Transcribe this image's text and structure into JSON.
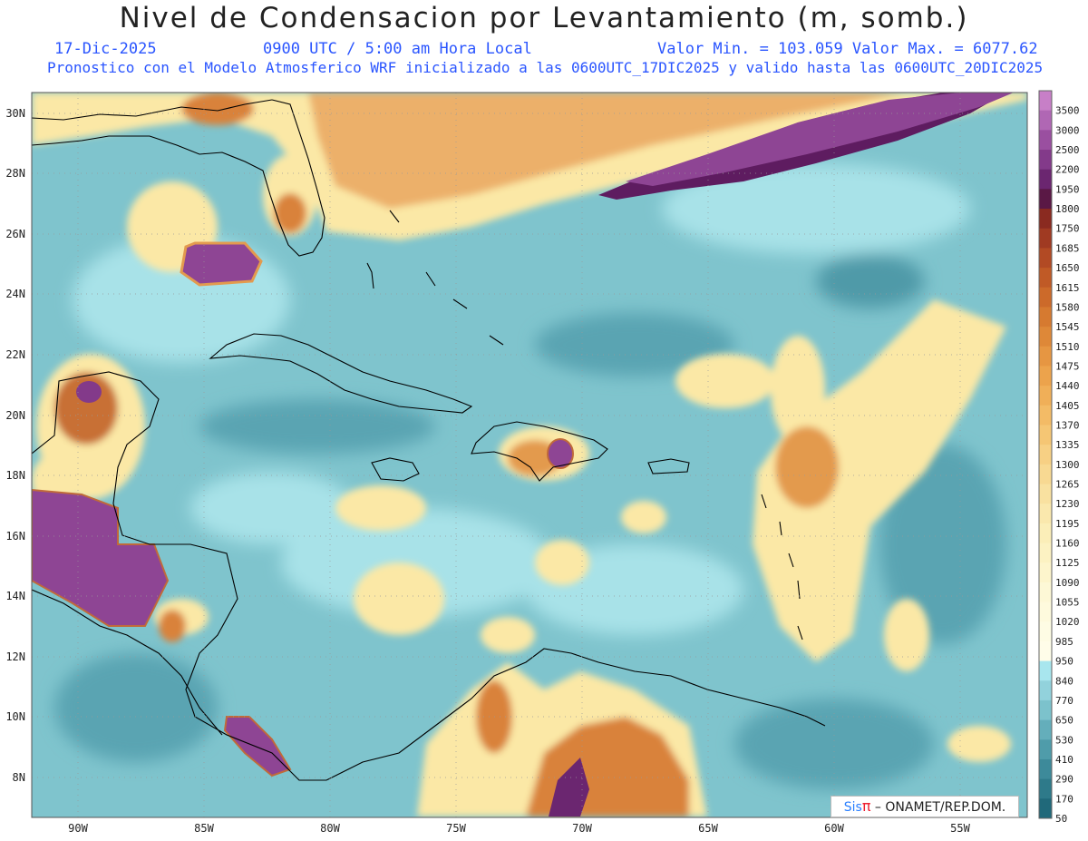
{
  "header": {
    "title": "Nivel de Condensacion por Levantamiento (m, somb.)",
    "date": "17-Dic-2025",
    "time": "0900 UTC / 5:00 am Hora Local",
    "values": "Valor Min. = 103.059  Valor Max. = 6077.62",
    "description": "Pronostico con el Modelo Atmosferico WRF inicializado a las 0600UTC_17DIC2025 y valido hasta las  0600UTC_20DIC2025"
  },
  "axes": {
    "lat_labels": [
      "30N",
      "28N",
      "26N",
      "24N",
      "22N",
      "20N",
      "18N",
      "16N",
      "14N",
      "12N",
      "10N",
      "8N"
    ],
    "lon_labels": [
      "90W",
      "85W",
      "80W",
      "75W",
      "70W",
      "65W",
      "60W",
      "55W"
    ]
  },
  "colorbar": {
    "labels": [
      "3500",
      "3000",
      "2500",
      "2200",
      "1950",
      "1800",
      "1750",
      "1685",
      "1650",
      "1615",
      "1580",
      "1545",
      "1510",
      "1475",
      "1440",
      "1405",
      "1370",
      "1335",
      "1300",
      "1265",
      "1230",
      "1195",
      "1160",
      "1125",
      "1090",
      "1055",
      "1020",
      "985",
      "950",
      "840",
      "770",
      "650",
      "530",
      "410",
      "290",
      "170",
      "50"
    ],
    "colors": [
      "#c77fc7",
      "#b067b4",
      "#9a4fa0",
      "#833a8a",
      "#6b2670",
      "#5a1845",
      "#8a2a20",
      "#a03a22",
      "#b24a24",
      "#c05a26",
      "#cc6a2a",
      "#d67a30",
      "#de8838",
      "#e69642",
      "#eca34c",
      "#f0af58",
      "#f3bb66",
      "#f5c674",
      "#f7d084",
      "#f8d992",
      "#f9e1a0",
      "#fae8ad",
      "#fbeeb8",
      "#fcf2c2",
      "#fdf5cc",
      "#fdf8d6",
      "#fefadd",
      "#fefce4",
      "#fffde9",
      "#a8e6ee",
      "#92d2dc",
      "#7cc2cc",
      "#64aebb",
      "#4f9caa",
      "#3d8a9a",
      "#2e7a8a",
      "#20697a"
    ]
  },
  "colors": {
    "ocean_mid": "#7fc4cd",
    "ocean_light": "#a8e2e8",
    "ocean_dark": "#4f9aa8",
    "land_yellow": "#fbe8a6",
    "orange": "#e39a4e",
    "brown": "#a95a28",
    "purple": "#8e4594",
    "deep_purple": "#5e1c60"
  },
  "credit": {
    "sis": "Sis",
    "pi": "π",
    "rest": " – ONAMET/REP.DOM."
  }
}
